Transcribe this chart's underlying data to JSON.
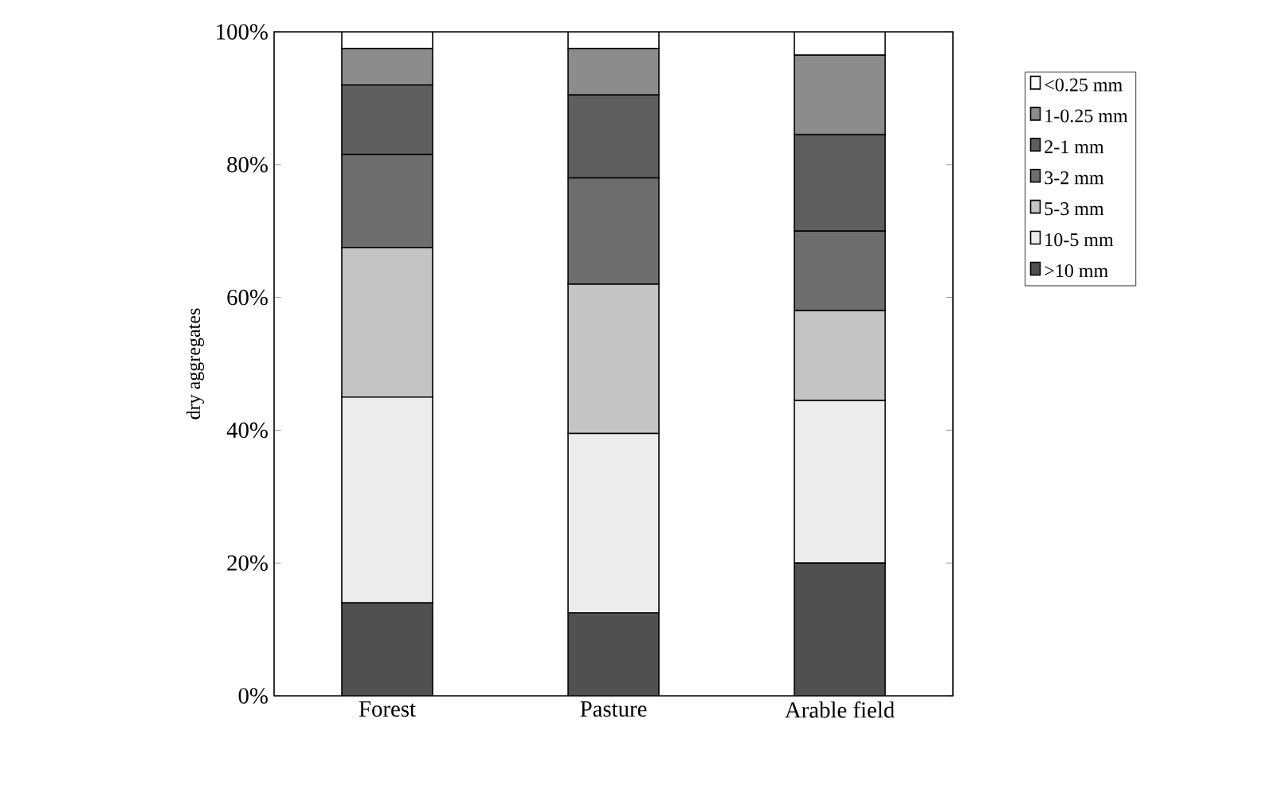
{
  "chart_data": {
    "type": "bar",
    "stacked": true,
    "ylabel": "dry aggregates",
    "categories": [
      "Forest",
      "Pasture",
      "Arable field"
    ],
    "series": [
      {
        "name": ">10 mm",
        "color": "#505050",
        "values": [
          14,
          12.5,
          20
        ]
      },
      {
        "name": "10-5 mm",
        "color": "#ececec",
        "values": [
          31,
          27,
          24.5
        ]
      },
      {
        "name": "5-3 mm",
        "color": "#c4c4c4",
        "values": [
          22.5,
          22.5,
          13.5
        ]
      },
      {
        "name": "3-2 mm",
        "color": "#6e6e6e",
        "values": [
          14,
          16,
          12
        ]
      },
      {
        "name": "2-1 mm",
        "color": "#5e5e5e",
        "values": [
          10.5,
          12.5,
          14.5
        ]
      },
      {
        "name": "1-0.25 mm",
        "color": "#8c8c8c",
        "values": [
          5.5,
          7,
          12
        ]
      },
      {
        "name": "<0.25 mm",
        "color": "#ffffff",
        "values": [
          2.5,
          2.5,
          3.5
        ]
      }
    ],
    "ylim": [
      0,
      100
    ],
    "yticks": [
      {
        "value": 0,
        "label": "0%"
      },
      {
        "value": 20,
        "label": "20%"
      },
      {
        "value": 40,
        "label": "40%"
      },
      {
        "value": 60,
        "label": "60%"
      },
      {
        "value": 80,
        "label": "80%"
      },
      {
        "value": 100,
        "label": "100%"
      }
    ],
    "grid": false,
    "legend": "right"
  }
}
